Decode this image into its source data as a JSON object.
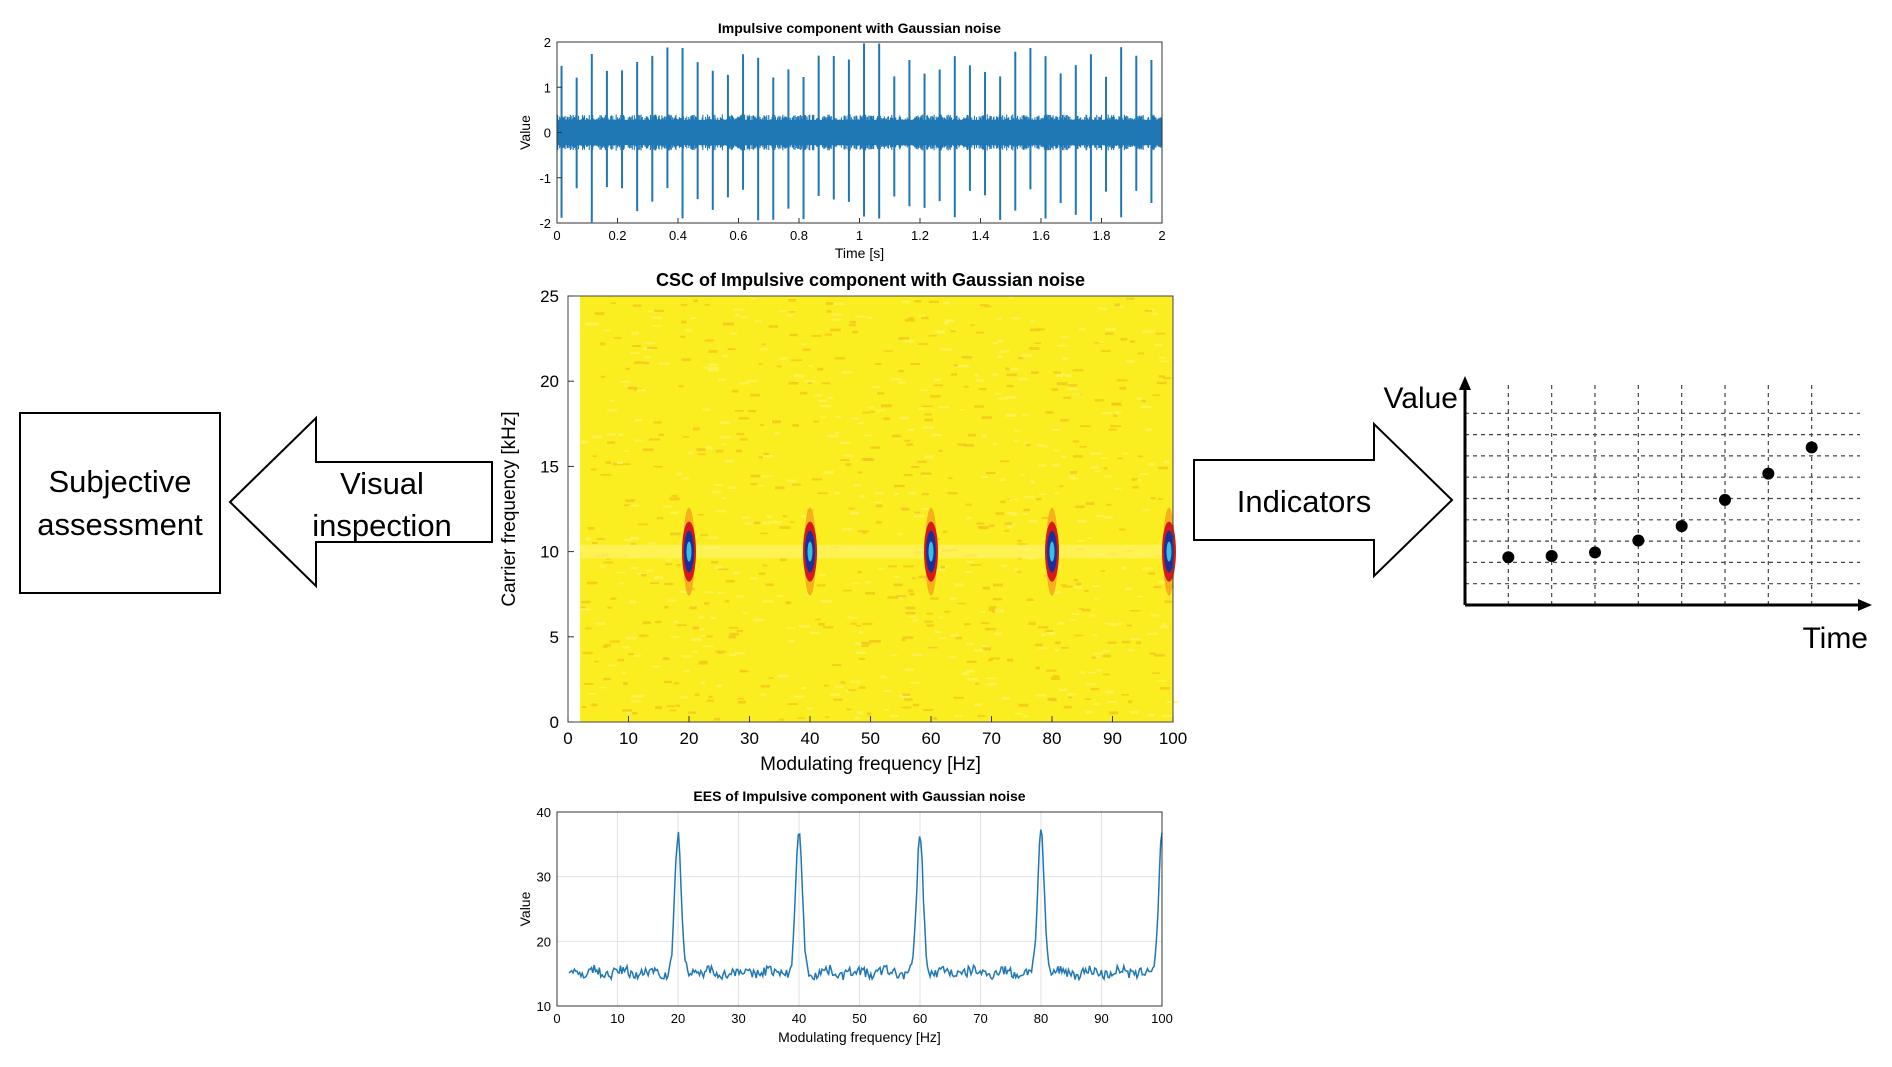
{
  "left_box": {
    "line1": "Subjective",
    "line2": "assessment"
  },
  "left_arrow": {
    "line1": "Visual",
    "line2": "inspection"
  },
  "right_arrow": {
    "label": "Indicators"
  },
  "indicator_chart": {
    "y_label": "Value",
    "x_label": "Time"
  },
  "chart_data": [
    {
      "id": "time_signal",
      "type": "line",
      "title": "Impulsive component with Gaussian noise",
      "xlabel": "Time [s]",
      "ylabel": "Value",
      "xlim": [
        0,
        2
      ],
      "ylim": [
        -2,
        2
      ],
      "xticks": [
        "0",
        "0.2",
        "0.4",
        "0.6",
        "0.8",
        "1",
        "1.2",
        "1.4",
        "1.6",
        "1.8",
        "2"
      ],
      "yticks": [
        "-2",
        "-1",
        "0",
        "1",
        "2"
      ],
      "noise_band": [
        -0.4,
        0.4
      ],
      "impulse_period_s": 0.05,
      "impulse_peak_range": [
        1.2,
        2.0
      ],
      "color": "#1f77b4"
    },
    {
      "id": "csc_map",
      "type": "heatmap",
      "title": "CSC of Impulsive component with Gaussian noise",
      "xlabel": "Modulating frequency [Hz]",
      "ylabel": "Carrier frequency [kHz]",
      "xlim": [
        0,
        100
      ],
      "ylim": [
        0,
        25
      ],
      "xticks": [
        "0",
        "10",
        "20",
        "30",
        "40",
        "50",
        "60",
        "70",
        "80",
        "90",
        "100"
      ],
      "yticks": [
        "0",
        "5",
        "10",
        "15",
        "20",
        "25"
      ],
      "hotspots": [
        {
          "mod_hz": 20,
          "carrier_khz": 10
        },
        {
          "mod_hz": 40,
          "carrier_khz": 10
        },
        {
          "mod_hz": 60,
          "carrier_khz": 10
        },
        {
          "mod_hz": 80,
          "carrier_khz": 10
        },
        {
          "mod_hz": 100,
          "carrier_khz": 10
        }
      ],
      "background_color": "#fbee20"
    },
    {
      "id": "ees",
      "type": "line",
      "title": "EES of Impulsive component with Gaussian noise",
      "xlabel": "Modulating frequency [Hz]",
      "ylabel": "Value",
      "xlim": [
        0,
        100
      ],
      "ylim": [
        10,
        40
      ],
      "xticks": [
        "0",
        "10",
        "20",
        "30",
        "40",
        "50",
        "60",
        "70",
        "80",
        "90",
        "100"
      ],
      "yticks": [
        "10",
        "20",
        "30",
        "40"
      ],
      "baseline": 15.2,
      "peaks": [
        {
          "x": 20,
          "y": 36.2
        },
        {
          "x": 40,
          "y": 37.2
        },
        {
          "x": 60,
          "y": 36.3
        },
        {
          "x": 80,
          "y": 37.3
        },
        {
          "x": 100,
          "y": 37.0
        }
      ],
      "color": "#1f77b4"
    },
    {
      "id": "indicator_trend",
      "type": "scatter",
      "xlabel": "Time",
      "ylabel": "Value",
      "points": [
        {
          "x": 1,
          "y": 2.0
        },
        {
          "x": 2,
          "y": 2.05
        },
        {
          "x": 3,
          "y": 2.2
        },
        {
          "x": 4,
          "y": 2.7
        },
        {
          "x": 5,
          "y": 3.3
        },
        {
          "x": 6,
          "y": 4.4
        },
        {
          "x": 7,
          "y": 5.5
        },
        {
          "x": 8,
          "y": 6.6
        }
      ],
      "ylim": [
        0,
        9
      ],
      "xlim": [
        0,
        9
      ]
    }
  ]
}
